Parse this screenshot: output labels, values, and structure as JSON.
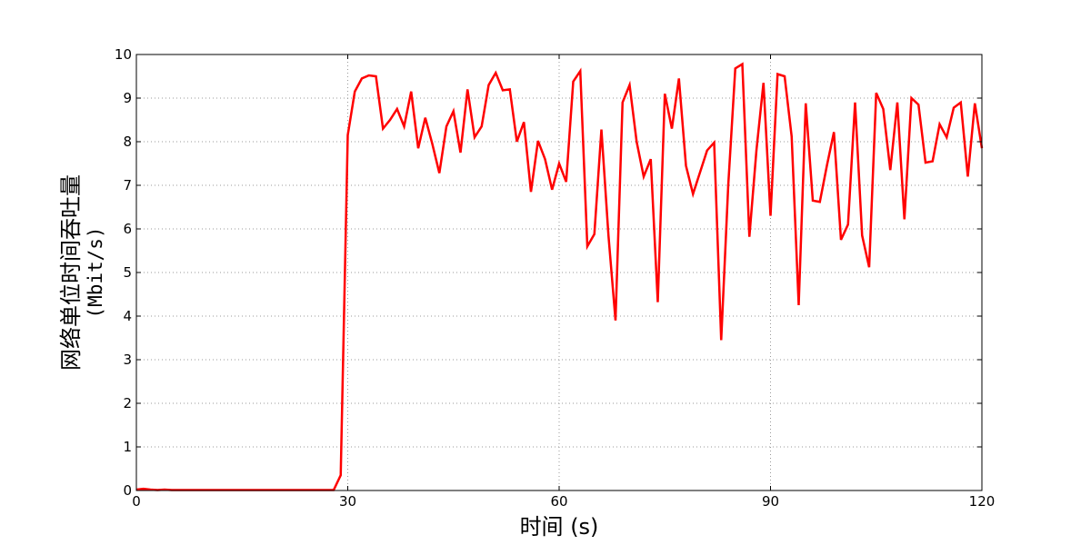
{
  "chart_data": {
    "type": "line",
    "title": "",
    "xlabel": "时间 (s)",
    "ylabel_line1": "网络单位时间吞吐量",
    "ylabel_line2": "(Mbit/s)",
    "xlim": [
      0,
      120
    ],
    "ylim": [
      0,
      10
    ],
    "xticks": [
      0,
      30,
      60,
      90,
      120
    ],
    "yticks": [
      0,
      1,
      2,
      3,
      4,
      5,
      6,
      7,
      8,
      9,
      10
    ],
    "grid": true,
    "grid_style": "dotted",
    "line_color": "#ff0000",
    "axis_color": "#000000",
    "grid_color": "#999999",
    "background": "#ffffff",
    "series": [
      {
        "x": [
          0,
          1,
          2,
          3,
          4,
          5,
          6,
          7,
          8,
          9,
          10,
          11,
          12,
          13,
          14,
          15,
          16,
          17,
          18,
          19,
          20,
          21,
          22,
          23,
          24,
          25,
          26,
          27,
          28,
          29,
          30,
          31,
          32,
          33,
          34,
          35,
          36,
          37,
          38,
          39,
          40,
          41,
          42,
          43,
          44,
          45,
          46,
          47,
          48,
          49,
          50,
          51,
          52,
          53,
          54,
          55,
          56,
          57,
          58,
          59,
          60,
          61,
          62,
          63,
          64,
          65,
          66,
          67,
          68,
          69,
          70,
          71,
          72,
          73,
          74,
          75,
          76,
          77,
          78,
          79,
          80,
          81,
          82,
          83,
          84,
          85,
          86,
          87,
          88,
          89,
          90,
          91,
          92,
          93,
          94,
          95,
          96,
          97,
          98,
          99,
          100,
          101,
          102,
          103,
          104,
          105,
          106,
          107,
          108,
          109,
          110,
          111,
          112,
          113,
          114,
          115,
          116,
          117,
          118,
          119,
          120
        ],
        "y": [
          0.02,
          0.04,
          0.02,
          0.01,
          0.02,
          0.01,
          0.01,
          0.01,
          0.01,
          0.01,
          0.01,
          0.01,
          0.01,
          0.01,
          0.01,
          0.01,
          0.01,
          0.01,
          0.01,
          0.01,
          0.01,
          0.01,
          0.01,
          0.01,
          0.01,
          0.01,
          0.01,
          0.01,
          0.01,
          0.35,
          8.15,
          9.15,
          9.45,
          9.52,
          9.5,
          8.3,
          8.5,
          8.75,
          8.35,
          9.15,
          7.85,
          8.55,
          7.95,
          7.28,
          8.35,
          8.7,
          7.75,
          9.2,
          8.1,
          8.35,
          9.3,
          9.58,
          9.18,
          9.2,
          8.0,
          8.45,
          6.85,
          8.02,
          7.6,
          6.9,
          7.5,
          7.08,
          9.38,
          9.62,
          5.6,
          5.88,
          8.28,
          5.85,
          3.9,
          8.9,
          9.3,
          8.0,
          7.2,
          7.6,
          4.32,
          9.1,
          8.3,
          9.45,
          7.45,
          6.8,
          7.3,
          7.8,
          7.98,
          3.45,
          7.0,
          9.68,
          9.78,
          5.82,
          7.8,
          9.35,
          6.3,
          9.55,
          9.5,
          8.12,
          4.25,
          8.88,
          6.65,
          6.62,
          7.45,
          8.22,
          5.75,
          6.1,
          8.9,
          5.85,
          5.12,
          9.12,
          8.75,
          7.35,
          8.9,
          6.22,
          9.0,
          8.85,
          7.52,
          7.55,
          8.4,
          8.1,
          8.78,
          8.9,
          7.2,
          8.88,
          7.85
        ]
      }
    ]
  }
}
